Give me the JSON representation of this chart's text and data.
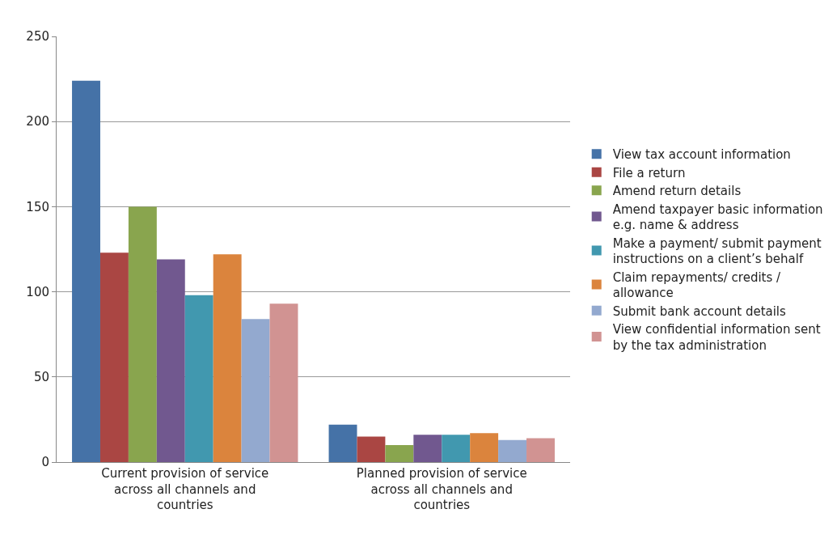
{
  "chart_data": {
    "type": "bar",
    "categories": [
      "Current provision of service across all channels and countries",
      "Planned provision of service across all channels and countries"
    ],
    "series": [
      {
        "name": "View tax account information",
        "color": "#4572a7",
        "values": [
          224,
          22
        ]
      },
      {
        "name": "File a return",
        "color": "#aa4643",
        "values": [
          123,
          15
        ]
      },
      {
        "name": "Amend return details",
        "color": "#89a54e",
        "values": [
          150,
          10
        ]
      },
      {
        "name": "Amend taxpayer basic information e.g. name & address",
        "color": "#71588f",
        "values": [
          119,
          16
        ]
      },
      {
        "name": "Make a payment/ submit payment instructions on a client’s behalf",
        "color": "#4198af",
        "values": [
          98,
          16
        ]
      },
      {
        "name": "Claim repayments/ credits / allowance",
        "color": "#db843d",
        "values": [
          122,
          17
        ]
      },
      {
        "name": "Submit bank account details",
        "color": "#93a9cf",
        "values": [
          84,
          13
        ]
      },
      {
        "name": "View confidential information sent by the tax administration",
        "color": "#d19392",
        "values": [
          93,
          14
        ]
      }
    ],
    "ylim": [
      0,
      250
    ],
    "yticks": [
      0,
      50,
      100,
      150,
      200,
      250
    ],
    "grid": "y",
    "legend": "right"
  }
}
